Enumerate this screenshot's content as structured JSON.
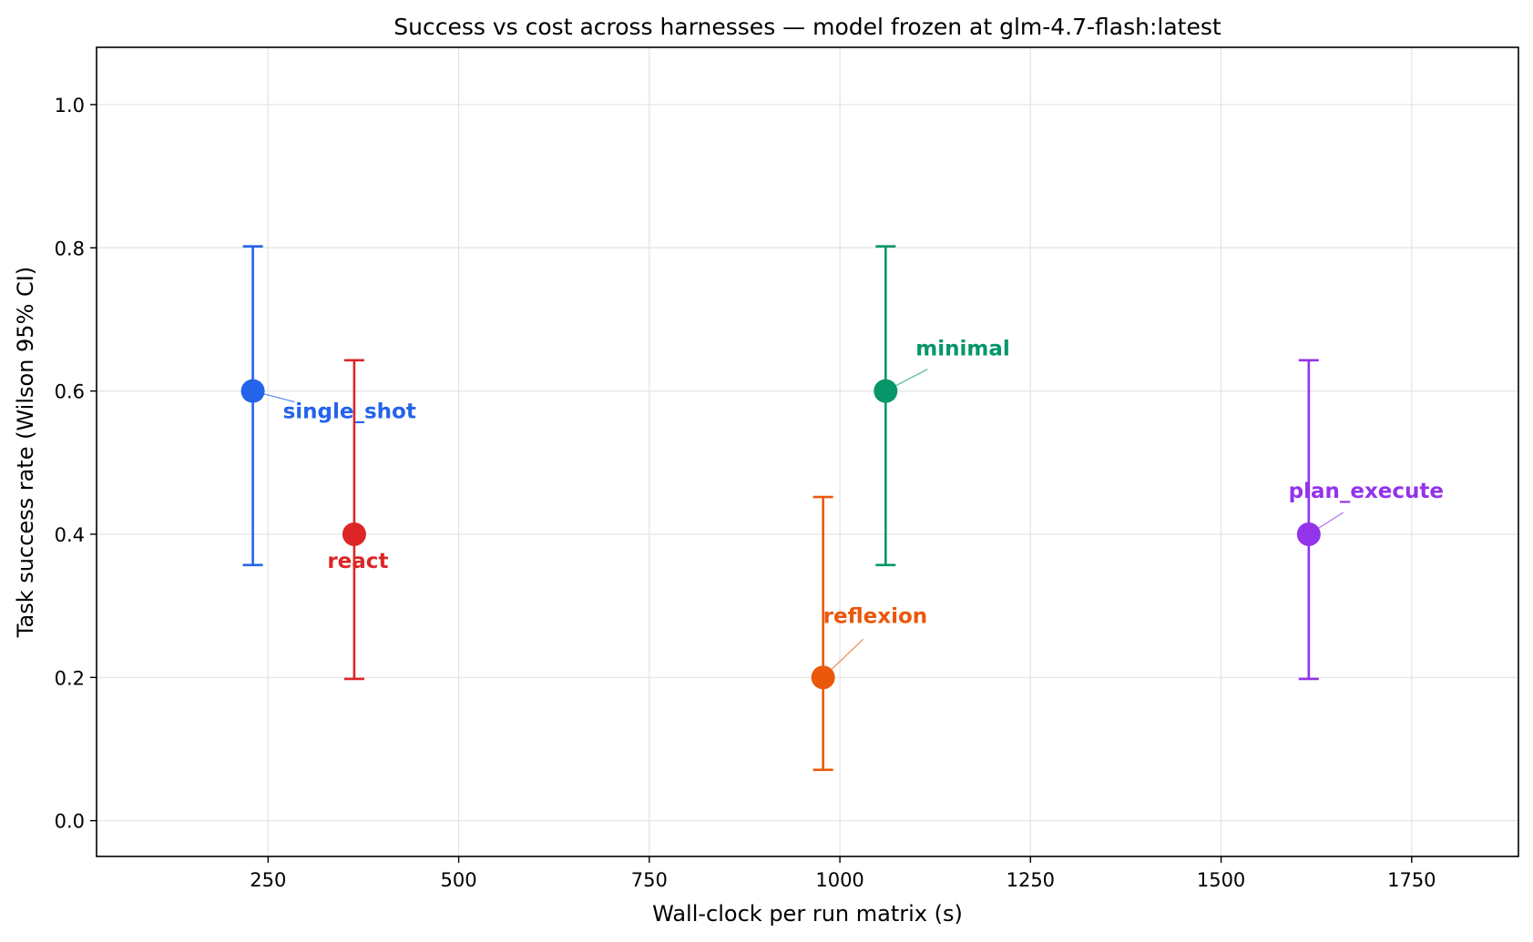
{
  "chart_data": {
    "type": "scatter",
    "title": "Success vs cost across harnesses — model frozen at glm-4.7-flash:latest",
    "xlabel": "Wall-clock per run matrix (s)",
    "ylabel": "Task success rate (Wilson 95% CI)",
    "xlim": [
      25,
      1890
    ],
    "ylim": [
      -0.05,
      1.08
    ],
    "xticks": [
      250,
      500,
      750,
      1000,
      1250,
      1500,
      1750
    ],
    "yticks": [
      0.0,
      0.2,
      0.4,
      0.6,
      0.8,
      1.0
    ],
    "xtick_labels": [
      "250",
      "500",
      "750",
      "1000",
      "1250",
      "1500",
      "1750"
    ],
    "ytick_labels": [
      "0.0",
      "0.2",
      "0.4",
      "0.6",
      "0.8",
      "1.0"
    ],
    "grid": true,
    "points": [
      {
        "name": "single_shot",
        "x": 230,
        "y": 0.6,
        "ci_low": 0.357,
        "ci_high": 0.802,
        "color": "#2563eb"
      },
      {
        "name": "react",
        "x": 363,
        "y": 0.4,
        "ci_low": 0.198,
        "ci_high": 0.643,
        "color": "#dc2626"
      },
      {
        "name": "reflexion",
        "x": 978,
        "y": 0.2,
        "ci_low": 0.071,
        "ci_high": 0.452,
        "color": "#ea580c"
      },
      {
        "name": "minimal",
        "x": 1060,
        "y": 0.6,
        "ci_low": 0.357,
        "ci_high": 0.802,
        "color": "#059669"
      },
      {
        "name": "plan_execute",
        "x": 1615,
        "y": 0.4,
        "ci_low": 0.198,
        "ci_high": 0.643,
        "color": "#9333ea"
      }
    ]
  }
}
